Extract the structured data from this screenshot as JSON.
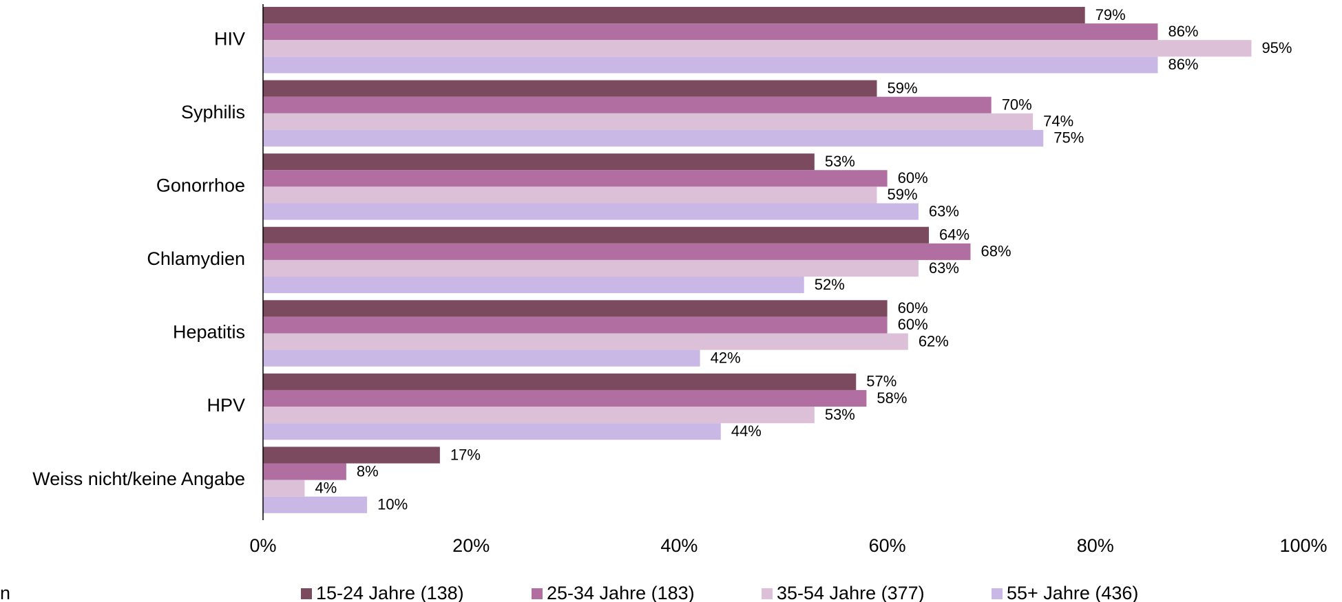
{
  "chart_data": {
    "type": "hbar",
    "note": "n",
    "categories": [
      "HIV",
      "Syphilis",
      "Gonorrhoe",
      "Chlamydien",
      "Hepatitis",
      "HPV",
      "Weiss nicht/keine Angabe"
    ],
    "series": [
      {
        "name": "15-24 Jahre (138)",
        "color": "#7b4a5e",
        "values": [
          79,
          59,
          53,
          64,
          60,
          57,
          17
        ],
        "value_labels": [
          "79%",
          "59%",
          "53%",
          "64%",
          "60%",
          "57%",
          "17%"
        ]
      },
      {
        "name": "25-34 Jahre (183)",
        "color": "#b06fa0",
        "values": [
          86,
          70,
          60,
          68,
          60,
          58,
          8
        ],
        "value_labels": [
          "86%",
          "70%",
          "60%",
          "68%",
          "60%",
          "58%",
          "8%"
        ]
      },
      {
        "name": "35-54 Jahre (377)",
        "color": "#dcc0d8",
        "values": [
          95,
          74,
          59,
          63,
          62,
          53,
          4
        ],
        "value_labels": [
          "95%",
          "74%",
          "59%",
          "63%",
          "62%",
          "53%",
          "4%"
        ]
      },
      {
        "name": "55+ Jahre (436)",
        "color": "#c9b8e6",
        "values": [
          86,
          75,
          63,
          52,
          42,
          44,
          10
        ],
        "value_labels": [
          "86%",
          "75%",
          "63%",
          "52%",
          "42%",
          "44%",
          "10%"
        ]
      }
    ],
    "xlim": [
      0,
      100
    ],
    "xticks": [
      {
        "value": 0,
        "label": "0%"
      },
      {
        "value": 20,
        "label": "20%"
      },
      {
        "value": 40,
        "label": "40%"
      },
      {
        "value": 60,
        "label": "60%"
      },
      {
        "value": 80,
        "label": "80%"
      },
      {
        "value": 100,
        "label": "100%"
      }
    ],
    "grid": false,
    "legend": "bottom"
  }
}
